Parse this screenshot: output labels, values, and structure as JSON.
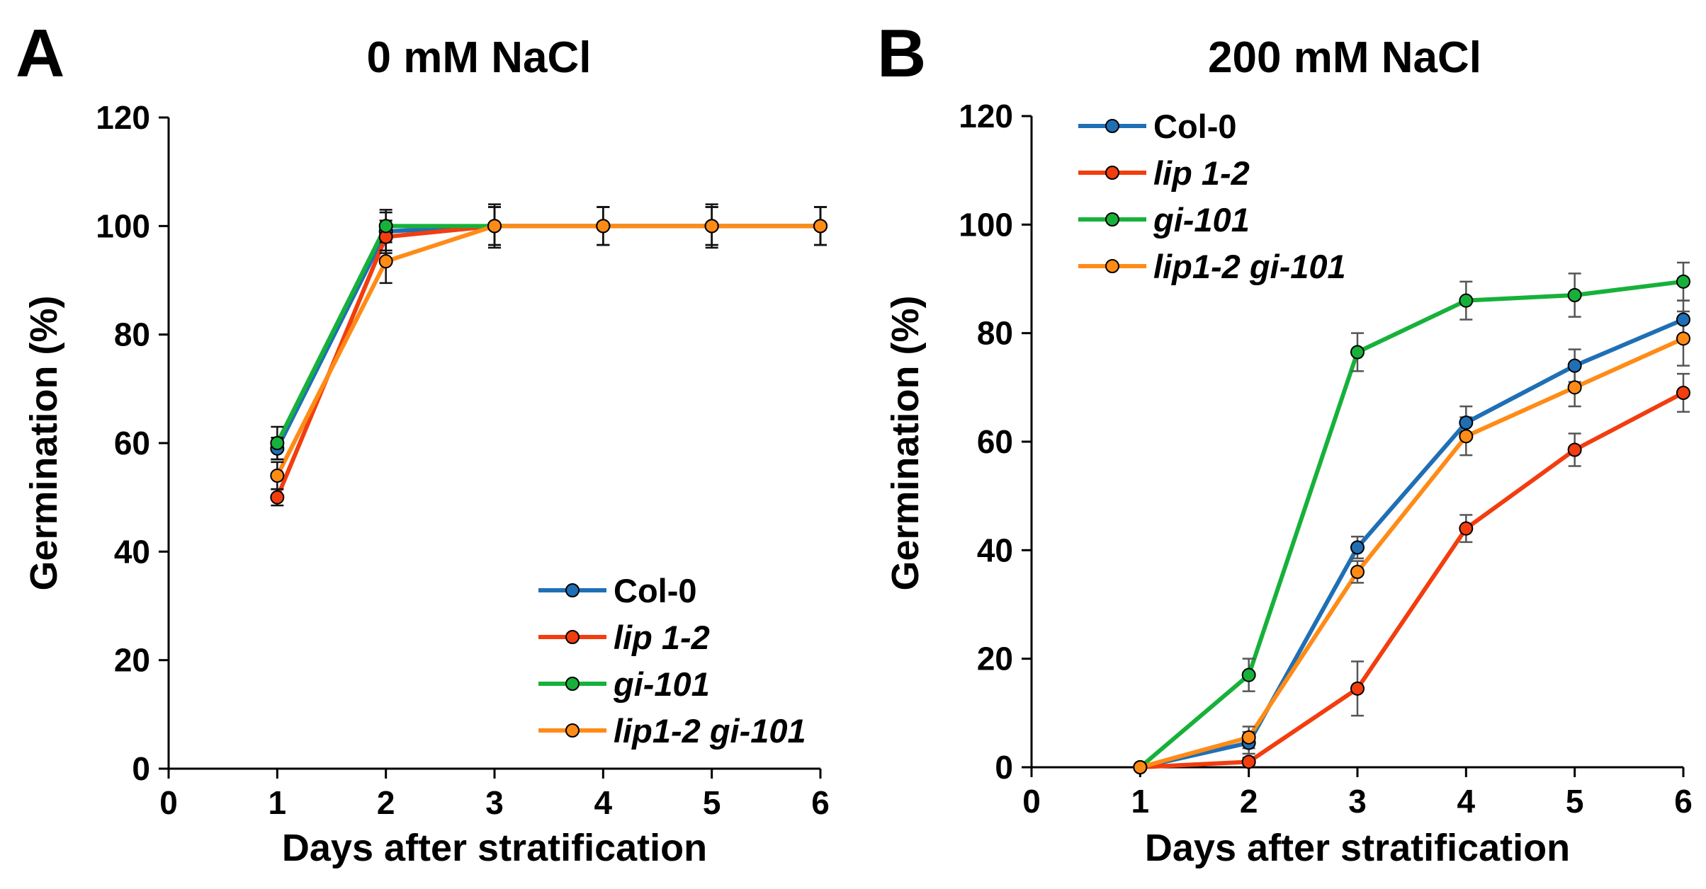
{
  "chart_data": [
    {
      "panel_label": "A",
      "type": "line",
      "title": "0 mM NaCl",
      "xlabel": "Days after stratification",
      "ylabel": "Germination (%)",
      "xlim": [
        0,
        6
      ],
      "ylim": [
        0,
        120
      ],
      "x_ticks": [
        "0",
        "1",
        "2",
        "3",
        "4",
        "5",
        "6"
      ],
      "y_ticks": [
        "0",
        "20",
        "40",
        "60",
        "80",
        "100",
        "120"
      ],
      "legend_position": "bottom-right",
      "x": [
        1,
        2,
        3,
        4,
        5,
        6
      ],
      "series": [
        {
          "name": "Col-0",
          "italic": false,
          "color": "#1f6fb5",
          "values": [
            59,
            99,
            100,
            100,
            100,
            100
          ],
          "errors": [
            2.0,
            3.5,
            4.0,
            3.5,
            4.0,
            3.5
          ]
        },
        {
          "name": "lip 1-2",
          "italic": true,
          "color": "#f23d0f",
          "values": [
            50,
            98,
            100,
            100,
            100,
            100
          ],
          "errors": [
            1.5,
            3.0,
            3.5,
            3.5,
            3.5,
            3.5
          ]
        },
        {
          "name": "gi-101",
          "italic": true,
          "color": "#17b13a",
          "values": [
            60,
            100,
            100,
            100,
            100,
            100
          ],
          "errors": [
            3.0,
            3.0,
            3.5,
            3.5,
            3.5,
            3.5
          ]
        },
        {
          "name": "lip1-2 gi-101",
          "italic": true,
          "color": "#ff8b17",
          "values": [
            54,
            93.5,
            100,
            100,
            100,
            100
          ],
          "errors": [
            2.5,
            4.0,
            3.5,
            3.5,
            3.5,
            3.5
          ]
        }
      ]
    },
    {
      "panel_label": "B",
      "type": "line",
      "title": "200 mM NaCl",
      "xlabel": "Days after stratification",
      "ylabel": "Germination (%)",
      "xlim": [
        0,
        6
      ],
      "ylim": [
        0,
        120
      ],
      "x_ticks": [
        "0",
        "1",
        "2",
        "3",
        "4",
        "5",
        "6"
      ],
      "y_ticks": [
        "0",
        "20",
        "40",
        "60",
        "80",
        "100",
        "120"
      ],
      "legend_position": "top-left",
      "x": [
        1,
        2,
        3,
        4,
        5,
        6
      ],
      "series": [
        {
          "name": "Col-0",
          "italic": false,
          "color": "#1f6fb5",
          "values": [
            0,
            4.5,
            40.5,
            63.5,
            74,
            82.5
          ],
          "errors": [
            0,
            2.0,
            2.0,
            3.0,
            3.0,
            3.5
          ]
        },
        {
          "name": "lip 1-2",
          "italic": true,
          "color": "#f23d0f",
          "values": [
            0,
            1,
            14.5,
            44,
            58.5,
            69
          ],
          "errors": [
            0,
            0.8,
            5.0,
            2.5,
            3.0,
            3.5
          ]
        },
        {
          "name": "gi-101",
          "italic": true,
          "color": "#17b13a",
          "values": [
            0,
            17,
            76.5,
            86,
            87,
            89.5
          ],
          "errors": [
            0,
            3.0,
            3.5,
            3.5,
            4.0,
            3.5
          ]
        },
        {
          "name": "lip1-2 gi-101",
          "italic": true,
          "color": "#ff8b17",
          "values": [
            0,
            5.5,
            36,
            61,
            70,
            79
          ],
          "errors": [
            0,
            2.0,
            2.0,
            3.5,
            3.5,
            5.0
          ]
        }
      ]
    }
  ]
}
